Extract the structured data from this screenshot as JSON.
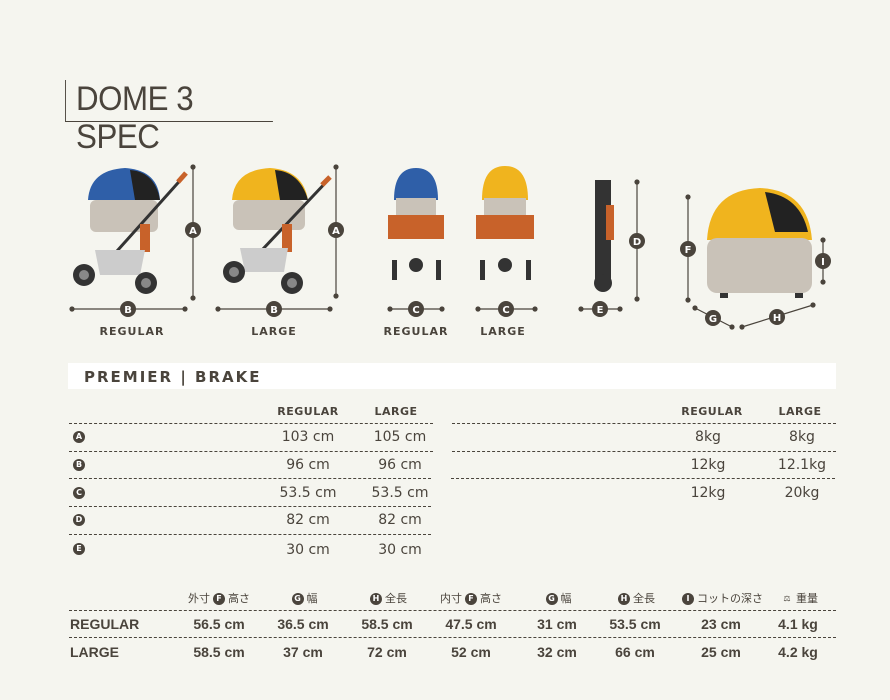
{
  "title": "DOME 3 SPEC",
  "diagram": {
    "captions": [
      "REGULAR",
      "LARGE",
      "REGULAR",
      "LARGE"
    ],
    "markers": [
      "A",
      "B",
      "C",
      "D",
      "E",
      "F",
      "G",
      "H",
      "I"
    ],
    "colors": {
      "blue_canopy": "#2f5fa8",
      "yellow_canopy": "#f0b41e",
      "handle": "#c8622a",
      "body": "#c9c2b8"
    }
  },
  "section": {
    "label": "PREMIER | BRAKE"
  },
  "left_table": {
    "columns": [
      "REGULAR",
      "LARGE"
    ],
    "rows": [
      {
        "marker": "A",
        "regular": "103 cm",
        "large": "105 cm"
      },
      {
        "marker": "B",
        "regular": "96 cm",
        "large": "96 cm"
      },
      {
        "marker": "C",
        "regular": "53.5 cm",
        "large": "53.5 cm"
      },
      {
        "marker": "D",
        "regular": "82 cm",
        "large": "82 cm"
      },
      {
        "marker": "E",
        "regular": "30 cm",
        "large": "30 cm"
      }
    ]
  },
  "right_table": {
    "columns": [
      "REGULAR",
      "LARGE"
    ],
    "rows": [
      {
        "regular": "8kg",
        "large": "8kg"
      },
      {
        "regular": "12kg",
        "large": "12.1kg"
      },
      {
        "regular": "12kg",
        "large": "20kg"
      }
    ]
  },
  "bottom_table": {
    "columns": [
      {
        "prefix": "外寸",
        "marker": "F",
        "label": "高さ"
      },
      {
        "prefix": "",
        "marker": "G",
        "label": "幅"
      },
      {
        "prefix": "",
        "marker": "H",
        "label": "全長"
      },
      {
        "prefix": "内寸",
        "marker": "F",
        "label": "高さ"
      },
      {
        "prefix": "",
        "marker": "G",
        "label": "幅"
      },
      {
        "prefix": "",
        "marker": "H",
        "label": "全長"
      },
      {
        "prefix": "",
        "marker": "I",
        "label": "コットの深さ"
      },
      {
        "prefix": "",
        "marker": "scale-icon",
        "label": "重量"
      }
    ],
    "rows": [
      {
        "label": "REGULAR",
        "values": [
          "56.5 cm",
          "36.5 cm",
          "58.5 cm",
          "47.5 cm",
          "31 cm",
          "53.5 cm",
          "23 cm",
          "4.1 kg"
        ]
      },
      {
        "label": "LARGE",
        "values": [
          "58.5 cm",
          "37 cm",
          "72 cm",
          "52 cm",
          "32 cm",
          "66 cm",
          "25 cm",
          "4.2 kg"
        ]
      }
    ]
  }
}
